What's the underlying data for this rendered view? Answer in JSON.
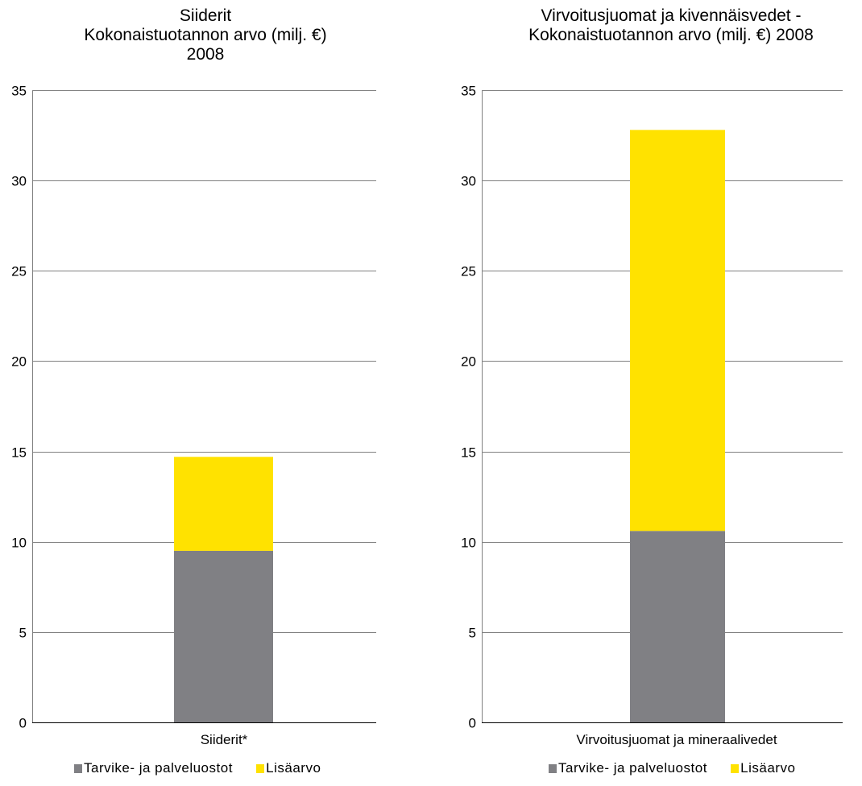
{
  "colors": {
    "Tarvike- ja palveluostot": "#808084",
    "Lisäarvo": "#ffe200",
    "gridline": "#808080"
  },
  "chart_data": [
    {
      "type": "bar",
      "stacked": true,
      "title_lines": [
        "Siiderit",
        "Kokonaistuotannon arvo (milj. €)",
        "2008"
      ],
      "categories": [
        "Siiderit*"
      ],
      "series": [
        {
          "name": "Tarvike- ja palveluostot",
          "values": [
            9.5
          ]
        },
        {
          "name": "Lisäarvo",
          "values": [
            5.2
          ]
        }
      ],
      "ylim": [
        0,
        35
      ],
      "yticks": [
        0,
        5,
        10,
        15,
        20,
        25,
        30,
        35
      ],
      "grid": true,
      "legend": "bottom"
    },
    {
      "type": "bar",
      "stacked": true,
      "title_lines": [
        "Virvoitusjuomat ja kivennäisvedet -",
        "Kokonaistuotannon arvo (milj. €) 2008"
      ],
      "categories": [
        "Virvoitusjuomat ja mineraalivedet"
      ],
      "series": [
        {
          "name": "Tarvike- ja palveluostot",
          "values": [
            10.6
          ]
        },
        {
          "name": "Lisäarvo",
          "values": [
            22.2
          ]
        }
      ],
      "ylim": [
        0,
        35
      ],
      "yticks": [
        0,
        5,
        10,
        15,
        20,
        25,
        30,
        35
      ],
      "grid": true,
      "legend": "bottom"
    }
  ]
}
